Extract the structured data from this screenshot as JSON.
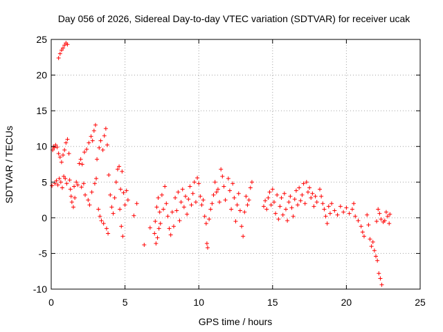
{
  "chart_data": {
    "type": "scatter",
    "title": "Day 056 of 2026, Sidereal Day-to-day VTEC variation (SDTVAR) for receiver ucak",
    "xlabel": "GPS time / hours",
    "ylabel": "SDTVAR / TECUs",
    "xlim": [
      0,
      25
    ],
    "ylim": [
      -10,
      25
    ],
    "xticks": [
      "0",
      "5",
      "10",
      "15",
      "20",
      "25"
    ],
    "yticks": [
      "-10",
      "-5",
      "0",
      "5",
      "10",
      "15",
      "20",
      "25"
    ],
    "grid": true,
    "marker": "+",
    "series": [
      {
        "name": "SDTVAR",
        "color": "#ff0000",
        "points": [
          [
            0.05,
            4.5
          ],
          [
            0.1,
            9.5
          ],
          [
            0.15,
            10.0
          ],
          [
            0.2,
            9.8
          ],
          [
            0.25,
            4.8
          ],
          [
            0.3,
            10.2
          ],
          [
            0.35,
            5.2
          ],
          [
            0.4,
            9.9
          ],
          [
            0.45,
            4.6
          ],
          [
            0.5,
            9.0
          ],
          [
            0.5,
            22.4
          ],
          [
            0.55,
            5.5
          ],
          [
            0.6,
            23.0
          ],
          [
            0.6,
            8.5
          ],
          [
            0.65,
            5.0
          ],
          [
            0.7,
            23.5
          ],
          [
            0.7,
            7.8
          ],
          [
            0.75,
            4.2
          ],
          [
            0.8,
            23.8
          ],
          [
            0.8,
            8.8
          ],
          [
            0.85,
            5.8
          ],
          [
            0.9,
            24.2
          ],
          [
            0.9,
            9.5
          ],
          [
            0.95,
            5.5
          ],
          [
            1.0,
            24.5
          ],
          [
            1.0,
            10.5
          ],
          [
            1.05,
            4.8
          ],
          [
            1.1,
            11.0
          ],
          [
            1.1,
            24.3
          ],
          [
            1.2,
            9.0
          ],
          [
            1.25,
            5.3
          ],
          [
            1.3,
            4.0
          ],
          [
            1.35,
            3.0
          ],
          [
            1.4,
            2.2
          ],
          [
            1.5,
            1.5
          ],
          [
            1.55,
            4.4
          ],
          [
            1.6,
            2.8
          ],
          [
            1.7,
            5.0
          ],
          [
            1.8,
            4.6
          ],
          [
            1.9,
            7.6
          ],
          [
            2.0,
            8.2
          ],
          [
            2.05,
            4.3
          ],
          [
            2.1,
            7.5
          ],
          [
            2.2,
            4.8
          ],
          [
            2.25,
            9.2
          ],
          [
            2.3,
            3.2
          ],
          [
            2.4,
            9.6
          ],
          [
            2.5,
            2.5
          ],
          [
            2.55,
            10.5
          ],
          [
            2.6,
            1.8
          ],
          [
            2.7,
            11.4
          ],
          [
            2.75,
            3.6
          ],
          [
            2.8,
            10.8
          ],
          [
            2.9,
            12.2
          ],
          [
            2.95,
            4.8
          ],
          [
            3.0,
            13.0
          ],
          [
            3.05,
            5.5
          ],
          [
            3.1,
            8.2
          ],
          [
            3.2,
            1.2
          ],
          [
            3.25,
            9.8
          ],
          [
            3.3,
            0.2
          ],
          [
            3.35,
            10.8
          ],
          [
            3.4,
            -0.4
          ],
          [
            3.5,
            9.5
          ],
          [
            3.55,
            -0.8
          ],
          [
            3.6,
            11.5
          ],
          [
            3.7,
            12.5
          ],
          [
            3.75,
            -1.5
          ],
          [
            3.8,
            10.2
          ],
          [
            3.85,
            -2.2
          ],
          [
            3.9,
            6.0
          ],
          [
            4.0,
            3.2
          ],
          [
            4.1,
            1.5
          ],
          [
            4.2,
            0.6
          ],
          [
            4.3,
            2.8
          ],
          [
            4.4,
            5.0
          ],
          [
            4.5,
            6.8
          ],
          [
            4.6,
            7.2
          ],
          [
            4.65,
            1.2
          ],
          [
            4.7,
            4.0
          ],
          [
            4.75,
            -1.2
          ],
          [
            4.8,
            6.5
          ],
          [
            4.85,
            -2.6
          ],
          [
            4.9,
            3.5
          ],
          [
            5.0,
            1.8
          ],
          [
            5.1,
            3.8
          ],
          [
            5.2,
            2.5
          ],
          [
            5.6,
            0.3
          ],
          [
            5.8,
            2.0
          ],
          [
            6.3,
            -3.8
          ],
          [
            6.7,
            -1.4
          ],
          [
            7.0,
            -2.2
          ],
          [
            7.05,
            -0.5
          ],
          [
            7.1,
            -3.6
          ],
          [
            7.15,
            1.5
          ],
          [
            7.2,
            -2.8
          ],
          [
            7.25,
            2.8
          ],
          [
            7.3,
            -1.5
          ],
          [
            7.35,
            0.8
          ],
          [
            7.4,
            -0.8
          ],
          [
            7.5,
            3.2
          ],
          [
            7.6,
            1.2
          ],
          [
            7.7,
            4.4
          ],
          [
            7.8,
            2.0
          ],
          [
            7.9,
            0.2
          ],
          [
            8.0,
            -1.5
          ],
          [
            8.1,
            -2.4
          ],
          [
            8.2,
            0.8
          ],
          [
            8.3,
            -1.2
          ],
          [
            8.4,
            2.8
          ],
          [
            8.5,
            1.0
          ],
          [
            8.6,
            3.6
          ],
          [
            8.7,
            -0.4
          ],
          [
            8.8,
            2.2
          ],
          [
            8.9,
            4.0
          ],
          [
            9.0,
            1.5
          ],
          [
            9.1,
            3.0
          ],
          [
            9.2,
            0.5
          ],
          [
            9.3,
            2.6
          ],
          [
            9.4,
            4.4
          ],
          [
            9.5,
            1.8
          ],
          [
            9.6,
            3.4
          ],
          [
            9.7,
            5.0
          ],
          [
            9.8,
            2.2
          ],
          [
            9.9,
            5.6
          ],
          [
            10.0,
            4.8
          ],
          [
            10.1,
            3.0
          ],
          [
            10.2,
            1.8
          ],
          [
            10.3,
            2.5
          ],
          [
            10.4,
            0.2
          ],
          [
            10.5,
            -0.8
          ],
          [
            10.55,
            -3.6
          ],
          [
            10.6,
            -4.2
          ],
          [
            10.7,
            -0.2
          ],
          [
            10.8,
            1.2
          ],
          [
            10.9,
            2.0
          ],
          [
            11.0,
            3.2
          ],
          [
            11.1,
            5.0
          ],
          [
            11.2,
            3.6
          ],
          [
            11.3,
            4.0
          ],
          [
            11.4,
            2.2
          ],
          [
            11.5,
            6.8
          ],
          [
            11.6,
            5.8
          ],
          [
            11.7,
            4.4
          ],
          [
            11.8,
            2.5
          ],
          [
            12.0,
            5.5
          ],
          [
            12.1,
            3.8
          ],
          [
            12.2,
            1.2
          ],
          [
            12.3,
            4.8
          ],
          [
            12.4,
            2.8
          ],
          [
            12.5,
            -0.5
          ],
          [
            12.6,
            1.8
          ],
          [
            12.7,
            3.4
          ],
          [
            12.8,
            1.0
          ],
          [
            12.9,
            -1.2
          ],
          [
            13.0,
            -2.6
          ],
          [
            13.1,
            0.8
          ],
          [
            13.2,
            3.0
          ],
          [
            13.3,
            1.8
          ],
          [
            13.4,
            2.5
          ],
          [
            13.5,
            4.2
          ],
          [
            13.6,
            5.0
          ],
          [
            14.4,
            1.6
          ],
          [
            14.5,
            2.4
          ],
          [
            14.6,
            1.2
          ],
          [
            14.7,
            2.8
          ],
          [
            14.8,
            3.6
          ],
          [
            14.9,
            1.8
          ],
          [
            15.0,
            4.0
          ],
          [
            15.1,
            2.2
          ],
          [
            15.2,
            0.6
          ],
          [
            15.3,
            3.2
          ],
          [
            15.4,
            -0.2
          ],
          [
            15.5,
            1.6
          ],
          [
            15.6,
            2.8
          ],
          [
            15.7,
            0.4
          ],
          [
            15.8,
            3.4
          ],
          [
            15.9,
            1.2
          ],
          [
            16.0,
            -0.4
          ],
          [
            16.1,
            2.2
          ],
          [
            16.2,
            3.0
          ],
          [
            16.3,
            1.4
          ],
          [
            16.4,
            0.2
          ],
          [
            16.5,
            2.6
          ],
          [
            16.6,
            3.8
          ],
          [
            16.7,
            1.8
          ],
          [
            16.8,
            4.2
          ],
          [
            16.9,
            2.4
          ],
          [
            17.0,
            3.2
          ],
          [
            17.1,
            4.8
          ],
          [
            17.2,
            2.0
          ],
          [
            17.3,
            5.0
          ],
          [
            17.4,
            3.6
          ],
          [
            17.5,
            4.2
          ],
          [
            17.6,
            2.8
          ],
          [
            17.7,
            3.4
          ],
          [
            17.8,
            1.6
          ],
          [
            17.9,
            3.0
          ],
          [
            18.0,
            2.2
          ],
          [
            18.2,
            4.0
          ],
          [
            18.3,
            3.0
          ],
          [
            18.4,
            2.0
          ],
          [
            18.5,
            1.2
          ],
          [
            18.6,
            0.2
          ],
          [
            18.7,
            -0.8
          ],
          [
            18.8,
            1.6
          ],
          [
            18.9,
            0.6
          ],
          [
            19.0,
            2.0
          ],
          [
            19.2,
            1.0
          ],
          [
            19.4,
            0.4
          ],
          [
            19.6,
            1.6
          ],
          [
            19.8,
            0.8
          ],
          [
            20.0,
            1.4
          ],
          [
            20.2,
            0.6
          ],
          [
            20.4,
            1.2
          ],
          [
            20.5,
            2.0
          ],
          [
            20.6,
            0.2
          ],
          [
            20.8,
            -0.4
          ],
          [
            21.0,
            -1.2
          ],
          [
            21.1,
            -2.0
          ],
          [
            21.2,
            -2.6
          ],
          [
            21.4,
            0.4
          ],
          [
            21.5,
            -1.0
          ],
          [
            21.6,
            -3.0
          ],
          [
            21.7,
            -4.0
          ],
          [
            21.8,
            -3.4
          ],
          [
            21.9,
            -4.6
          ],
          [
            22.0,
            -5.4
          ],
          [
            22.05,
            -0.5
          ],
          [
            22.1,
            -6.0
          ],
          [
            22.15,
            1.2
          ],
          [
            22.2,
            -7.8
          ],
          [
            22.25,
            0.6
          ],
          [
            22.3,
            -8.5
          ],
          [
            22.35,
            -0.2
          ],
          [
            22.4,
            -9.4
          ],
          [
            22.5,
            -0.6
          ],
          [
            22.6,
            -0.4
          ],
          [
            22.7,
            0.8
          ],
          [
            22.8,
            0.2
          ],
          [
            22.9,
            -0.8
          ],
          [
            22.95,
            0.5
          ]
        ]
      }
    ]
  }
}
